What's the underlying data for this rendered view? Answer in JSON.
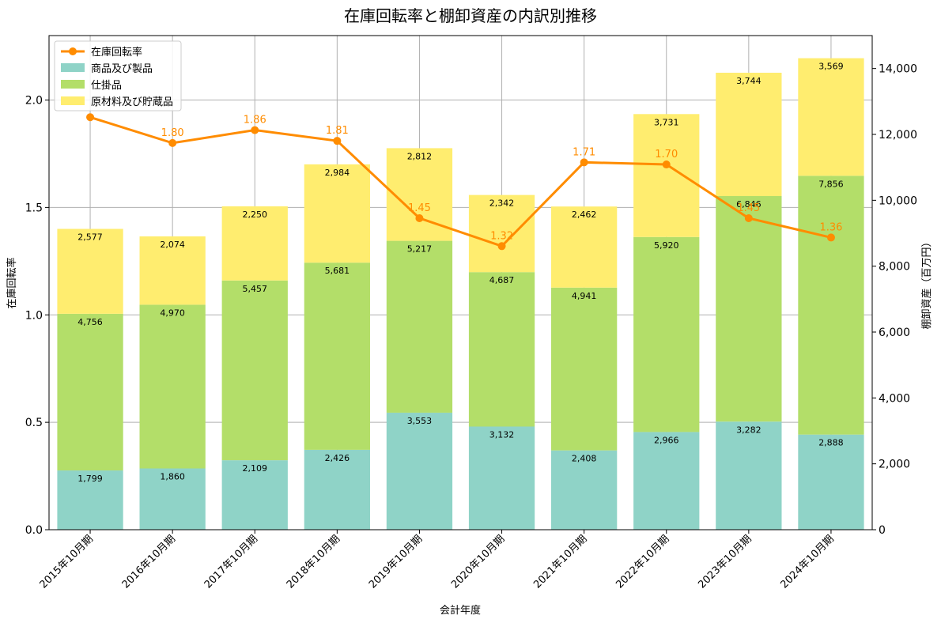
{
  "chart_data": {
    "type": "bar",
    "title": "在庫回転率と棚卸資産の内訳別推移",
    "xlabel": "会計年度",
    "ylabel_left": "在庫回転率",
    "ylabel_right": "棚卸資産（百万円）",
    "categories": [
      "2015年10月期",
      "2016年10月期",
      "2017年10月期",
      "2018年10月期",
      "2019年10月期",
      "2020年10月期",
      "2021年10月期",
      "2022年10月期",
      "2023年10月期",
      "2024年10月期"
    ],
    "stack_series": [
      {
        "name": "商品及び製品",
        "color": "#8fd3c7",
        "values": [
          1799,
          1860,
          2109,
          2426,
          3553,
          3132,
          2408,
          2966,
          3282,
          2888
        ],
        "labels": [
          "1,799",
          "1,860",
          "2,109",
          "2,426",
          "3,553",
          "3,132",
          "2,408",
          "2,966",
          "3,282",
          "2,888"
        ]
      },
      {
        "name": "仕掛品",
        "color": "#b3de69",
        "values": [
          4756,
          4970,
          5457,
          5681,
          5217,
          4687,
          4941,
          5920,
          6846,
          7856
        ],
        "labels": [
          "4,756",
          "4,970",
          "5,457",
          "5,681",
          "5,217",
          "4,687",
          "4,941",
          "5,920",
          "6,846",
          "7,856"
        ]
      },
      {
        "name": "原材料及び貯蔵品",
        "color": "#ffed6f",
        "values": [
          2577,
          2074,
          2250,
          2984,
          2812,
          2342,
          2462,
          3731,
          3744,
          3569
        ],
        "labels": [
          "2,577",
          "2,074",
          "2,250",
          "2,984",
          "2,812",
          "2,342",
          "2,462",
          "3,731",
          "3,744",
          "3,569"
        ]
      }
    ],
    "line_series": {
      "name": "在庫回転率",
      "color": "#ff8c00",
      "values": [
        1.92,
        1.8,
        1.86,
        1.81,
        1.45,
        1.32,
        1.71,
        1.7,
        1.45,
        1.36
      ],
      "labels": [
        "",
        "1.80",
        "1.86",
        "1.81",
        "1.45",
        "1.32",
        "1.71",
        "1.70",
        "1.45",
        "1.36"
      ]
    },
    "left_axis": {
      "ylim": [
        0,
        2.3
      ],
      "ticks": [
        0,
        0.5,
        1.0,
        1.5,
        2.0
      ],
      "tick_labels": [
        "0.0",
        "0.5",
        "1.0",
        "1.5",
        "2.0"
      ]
    },
    "right_axis": {
      "ylim": [
        0,
        15000
      ],
      "ticks": [
        0,
        2000,
        4000,
        6000,
        8000,
        10000,
        12000,
        14000
      ],
      "tick_labels": [
        "0",
        "2,000",
        "4,000",
        "6,000",
        "8,000",
        "10,000",
        "12,000",
        "14,000"
      ]
    },
    "grid": true,
    "legend_position": "top-left"
  }
}
